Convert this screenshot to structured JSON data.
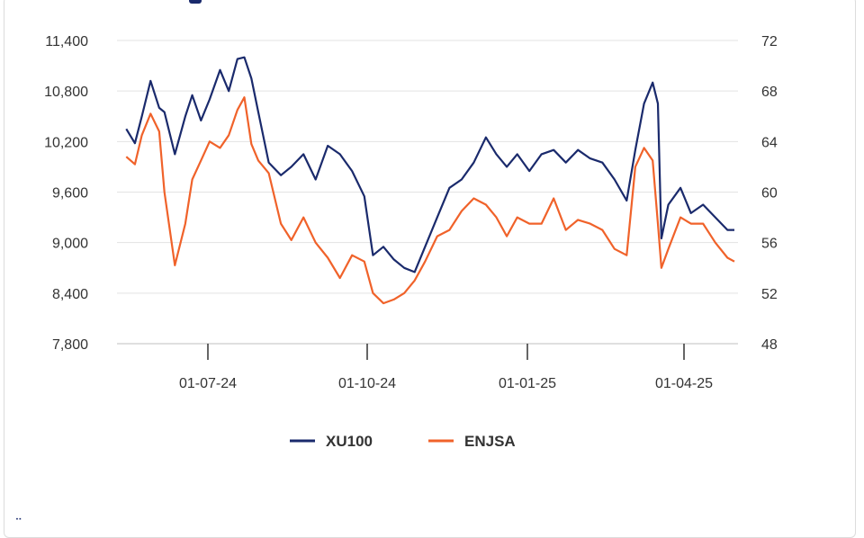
{
  "chart_data": {
    "type": "line",
    "title": "",
    "xlabel": "",
    "ylabel": "",
    "x_ticks": [
      "01-07-24",
      "01-10-24",
      "01-01-25",
      "01-04-25"
    ],
    "y_left": {
      "ticks": [
        "11,400",
        "10,800",
        "10,200",
        "9,600",
        "9,000",
        "8,400",
        "7,800"
      ],
      "range": [
        7800,
        11400
      ]
    },
    "y_right": {
      "ticks": [
        "72",
        "68",
        "64",
        "60",
        "56",
        "52",
        "48"
      ],
      "range": [
        48,
        72
      ]
    },
    "x_range": [
      "2024-05-15",
      "2025-04-30"
    ],
    "grid": true,
    "legend_position": "bottom",
    "series": [
      {
        "name": "XU100",
        "axis": "left",
        "color": "#1a2a6c",
        "dates": [
          "2024-05-15",
          "2024-05-20",
          "2024-05-24",
          "2024-05-29",
          "2024-06-03",
          "2024-06-06",
          "2024-06-12",
          "2024-06-18",
          "2024-06-22",
          "2024-06-27",
          "2024-07-02",
          "2024-07-08",
          "2024-07-13",
          "2024-07-18",
          "2024-07-22",
          "2024-07-26",
          "2024-07-30",
          "2024-08-05",
          "2024-08-12",
          "2024-08-18",
          "2024-08-25",
          "2024-09-01",
          "2024-09-08",
          "2024-09-15",
          "2024-09-22",
          "2024-09-29",
          "2024-10-04",
          "2024-10-10",
          "2024-10-16",
          "2024-10-22",
          "2024-10-28",
          "2024-11-03",
          "2024-11-10",
          "2024-11-17",
          "2024-11-24",
          "2024-12-01",
          "2024-12-08",
          "2024-12-14",
          "2024-12-20",
          "2024-12-26",
          "2025-01-02",
          "2025-01-09",
          "2025-01-16",
          "2025-01-23",
          "2025-01-30",
          "2025-02-06",
          "2025-02-13",
          "2025-02-20",
          "2025-02-27",
          "2025-03-04",
          "2025-03-09",
          "2025-03-14",
          "2025-03-17",
          "2025-03-19",
          "2025-03-23",
          "2025-03-30",
          "2025-04-05",
          "2025-04-12",
          "2025-04-19",
          "2025-04-26",
          "2025-04-30"
        ],
        "values": [
          10350,
          10180,
          10500,
          10920,
          10600,
          10550,
          10050,
          10500,
          10750,
          10450,
          10700,
          11050,
          10800,
          11180,
          11200,
          10950,
          10550,
          9950,
          9800,
          9900,
          10050,
          9750,
          10150,
          10050,
          9850,
          9550,
          8850,
          8950,
          8800,
          8700,
          8650,
          8950,
          9300,
          9650,
          9750,
          9950,
          10250,
          10050,
          9900,
          10050,
          9850,
          10050,
          10100,
          9950,
          10100,
          10000,
          9950,
          9750,
          9500,
          10100,
          10650,
          10900,
          10650,
          9050,
          9450,
          9650,
          9350,
          9450,
          9300,
          9150,
          9150
        ]
      },
      {
        "name": "ENJSA",
        "axis": "right",
        "color": "#f0622a",
        "dates": [
          "2024-05-15",
          "2024-05-20",
          "2024-05-24",
          "2024-05-29",
          "2024-06-03",
          "2024-06-06",
          "2024-06-12",
          "2024-06-18",
          "2024-06-22",
          "2024-06-27",
          "2024-07-02",
          "2024-07-08",
          "2024-07-13",
          "2024-07-18",
          "2024-07-22",
          "2024-07-26",
          "2024-07-30",
          "2024-08-05",
          "2024-08-12",
          "2024-08-18",
          "2024-08-25",
          "2024-09-01",
          "2024-09-08",
          "2024-09-15",
          "2024-09-22",
          "2024-09-29",
          "2024-10-04",
          "2024-10-10",
          "2024-10-16",
          "2024-10-22",
          "2024-10-28",
          "2024-11-03",
          "2024-11-10",
          "2024-11-17",
          "2024-11-24",
          "2024-12-01",
          "2024-12-08",
          "2024-12-14",
          "2024-12-20",
          "2024-12-26",
          "2025-01-02",
          "2025-01-09",
          "2025-01-16",
          "2025-01-23",
          "2025-01-30",
          "2025-02-06",
          "2025-02-13",
          "2025-02-20",
          "2025-02-27",
          "2025-03-04",
          "2025-03-09",
          "2025-03-14",
          "2025-03-17",
          "2025-03-19",
          "2025-03-23",
          "2025-03-30",
          "2025-04-05",
          "2025-04-12",
          "2025-04-19",
          "2025-04-26",
          "2025-04-30"
        ],
        "values": [
          62.8,
          62.2,
          64.5,
          66.2,
          64.8,
          60.0,
          54.2,
          57.5,
          61.0,
          62.5,
          64.0,
          63.5,
          64.5,
          66.5,
          67.5,
          63.8,
          62.5,
          61.5,
          57.5,
          56.2,
          58.0,
          56.0,
          54.8,
          53.2,
          55.0,
          54.5,
          52.0,
          51.2,
          51.5,
          52.0,
          53.0,
          54.5,
          56.5,
          57.0,
          58.5,
          59.5,
          59.0,
          58.0,
          56.5,
          58.0,
          57.5,
          57.5,
          59.5,
          57.0,
          57.8,
          57.5,
          57.0,
          55.5,
          55.0,
          62.0,
          63.5,
          62.5,
          57.5,
          54.0,
          55.5,
          58.0,
          57.5,
          57.5,
          56.0,
          54.8,
          54.5
        ]
      }
    ]
  }
}
